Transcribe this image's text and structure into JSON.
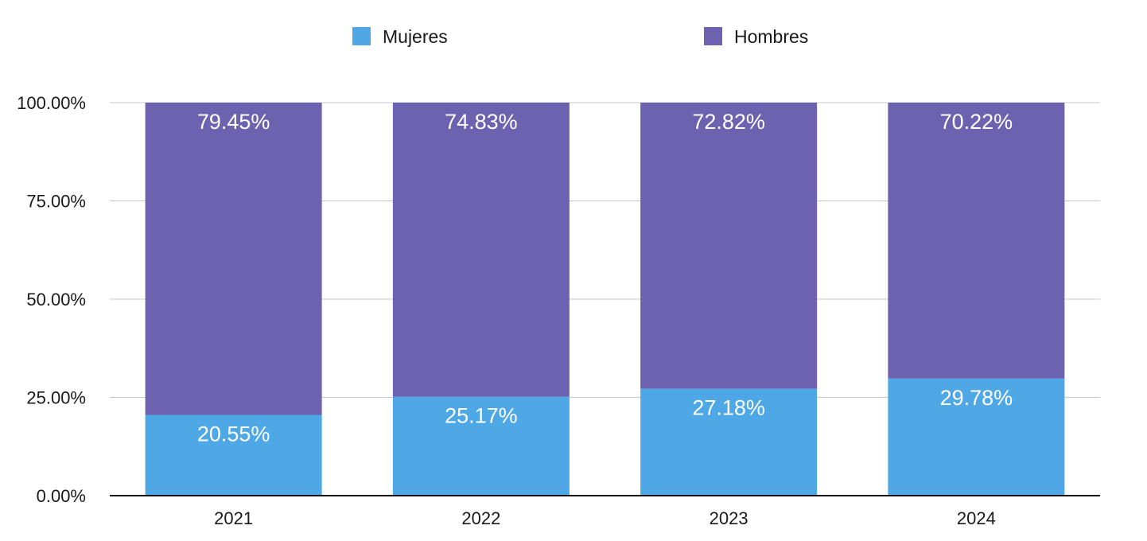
{
  "chart_data": {
    "type": "bar",
    "stacked": true,
    "categories": [
      "2021",
      "2022",
      "2023",
      "2024"
    ],
    "series": [
      {
        "name": "Mujeres",
        "color": "#4ea8e6",
        "values": [
          20.55,
          25.17,
          27.18,
          29.78
        ],
        "labels": [
          "20.55%",
          "25.17%",
          "27.18%",
          "29.78%"
        ]
      },
      {
        "name": "Hombres",
        "color": "#6c62b0",
        "values": [
          79.45,
          74.83,
          72.82,
          70.22
        ],
        "labels": [
          "79.45%",
          "74.83%",
          "72.82%",
          "70.22%"
        ]
      }
    ],
    "y_ticks": [
      "0.00%",
      "25.00%",
      "50.00%",
      "75.00%",
      "100.00%"
    ],
    "ylim": [
      0,
      100
    ],
    "grid": true,
    "legend_position": "top",
    "title": "",
    "xlabel": "",
    "ylabel": ""
  }
}
